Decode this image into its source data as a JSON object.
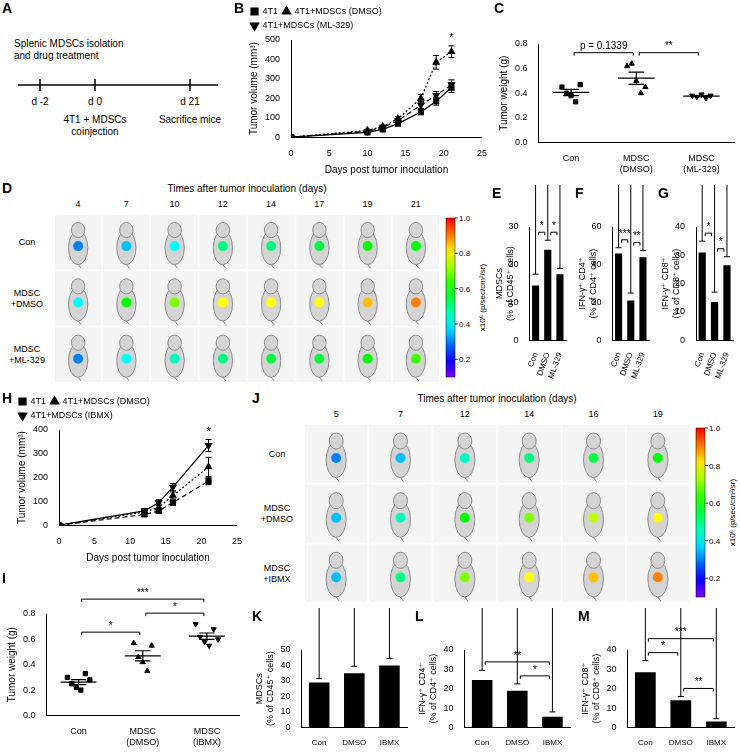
{
  "timeline": {
    "panel": "A",
    "events": [
      {
        "tick": "d -2",
        "label": "Splenic MDSCs isolation\nand drug treatment"
      },
      {
        "tick": "d 0",
        "label": "4T1 + MDSCs\ncoinjection"
      },
      {
        "tick": "d 21",
        "label": "Sacrifice mice"
      }
    ]
  },
  "imaging": [
    {
      "panel": "D",
      "title": "Times after tumor inoculation (days)",
      "days": [
        4,
        7,
        10,
        12,
        14,
        17,
        19,
        21
      ],
      "rows": [
        {
          "name": "Con",
          "signal": [
            0.3,
            0.35,
            0.4,
            0.5,
            0.5,
            0.55,
            0.6,
            0.6
          ]
        },
        {
          "name": "MDSC\n+DMSO",
          "signal": [
            0.4,
            0.6,
            0.7,
            0.8,
            0.8,
            0.8,
            0.85,
            0.9
          ]
        },
        {
          "name": "MDSC\n+ML-329",
          "signal": [
            0.3,
            0.4,
            0.45,
            0.5,
            0.55,
            0.55,
            0.6,
            0.65
          ]
        }
      ],
      "colorbar": {
        "range": [
          0.1,
          1
        ],
        "ticks": [
          0.2,
          0.4,
          0.6,
          0.8,
          {
            "value": 1,
            "label": "1.0"
          }
        ],
        "label": "x10⁶ (p/sec/cm²/sr)"
      }
    },
    {
      "panel": "J",
      "title": "Times after tumor inoculation (days)",
      "days": [
        5,
        7,
        12,
        14,
        16,
        19
      ],
      "rows": [
        {
          "name": "Con",
          "signal": [
            0.3,
            0.35,
            0.45,
            0.5,
            0.55,
            0.6
          ]
        },
        {
          "name": "MDSC\n+DMSO",
          "signal": [
            0.35,
            0.45,
            0.6,
            0.7,
            0.75,
            0.8
          ]
        },
        {
          "name": "MDSC\n+IBMX",
          "signal": [
            0.35,
            0.5,
            0.7,
            0.8,
            0.85,
            0.9
          ]
        }
      ],
      "colorbar": {
        "range": [
          0.1,
          1
        ],
        "ticks": [
          0.2,
          0.4,
          0.6,
          0.8,
          {
            "value": 1,
            "label": "1.0"
          }
        ],
        "label": "x10⁶ (p/sec/cm²/sr)"
      }
    }
  ],
  "chart_data": [
    {
      "panel": "B",
      "type": "line",
      "x_label": "Days post tumor inoculation",
      "y_label": "Tumor volume (mm³)",
      "xlim": [
        0,
        25
      ],
      "xticks": [
        0,
        5,
        10,
        15,
        20,
        25
      ],
      "ylim": [
        0,
        500
      ],
      "yticks": [
        0,
        100,
        200,
        300,
        400,
        500
      ],
      "grid": false,
      "legend": "top-left",
      "x": [
        0,
        10,
        12,
        14,
        17,
        19,
        21
      ],
      "series": [
        {
          "name": "4T1",
          "color": "#000000",
          "marker": "square",
          "line_style": "solid",
          "values": [
            0,
            25,
            40,
            70,
            130,
            185,
            255
          ],
          "errors": [
            0,
            5,
            6,
            10,
            15,
            20,
            25
          ]
        },
        {
          "name": "4T1+MDSCs (DMSO)",
          "color": "#000000",
          "marker": "triangle-up",
          "line_style": "dotted",
          "values": [
            0,
            35,
            55,
            95,
            200,
            385,
            440
          ],
          "errors": [
            0,
            6,
            8,
            12,
            20,
            35,
            30
          ]
        },
        {
          "name": "4T1+MDSCs (ML-329)",
          "color": "#000000",
          "marker": "triangle-down",
          "line_style": "dashed",
          "values": [
            0,
            30,
            50,
            85,
            165,
            215,
            270
          ],
          "errors": [
            0,
            5,
            7,
            10,
            18,
            20,
            25
          ]
        }
      ],
      "annotations": [
        {
          "text": "*",
          "series": "4T1+MDSCs (DMSO)",
          "x": 21
        }
      ]
    },
    {
      "panel": "C",
      "type": "scatter",
      "y_label": "Tumor weight (g)",
      "ylim": [
        0,
        0.8
      ],
      "yticks": [
        {
          "value": 0,
          "label": "0.0"
        },
        0.2,
        0.4,
        0.6,
        0.8
      ],
      "grid": false,
      "color": "#000000",
      "categories": [
        "Con",
        "MDSC\n(DMSO)",
        "MDSC\n(ML-329)"
      ],
      "groups": [
        {
          "marker": "square",
          "values": [
            0.45,
            0.4,
            0.38,
            0.33,
            0.47
          ],
          "mean": 0.406,
          "error": 0.025
        },
        {
          "marker": "triangle-up",
          "values": [
            0.62,
            0.64,
            0.5,
            0.4,
            0.45
          ],
          "mean": 0.522,
          "error": 0.05
        },
        {
          "marker": "triangle-down",
          "values": [
            0.38,
            0.37,
            0.39,
            0.36,
            0.38
          ],
          "mean": 0.376,
          "error": 0.005
        }
      ],
      "significance": [
        {
          "between": [
            "Con",
            "MDSC\n(DMSO)"
          ],
          "label": "p = 0.1339"
        },
        {
          "between": [
            "MDSC\n(DMSO)",
            "MDSC\n(ML-329)"
          ],
          "label": "**"
        }
      ]
    },
    {
      "panel": "E",
      "type": "bar",
      "y_label": "MDSCs\n(% of CD45⁺ cells)",
      "ylim": [
        0,
        30
      ],
      "yticks": [
        0,
        10,
        20,
        30
      ],
      "grid": false,
      "color": "#000000",
      "categories": [
        "Con",
        "DMSO",
        "ML-329"
      ],
      "values": [
        14.5,
        24,
        17.5
      ],
      "errors": [
        3,
        2.5,
        1.5
      ],
      "significance": [
        {
          "between": [
            "Con",
            "DMSO"
          ],
          "label": "*"
        },
        {
          "between": [
            "DMSO",
            "ML-329"
          ],
          "label": "*"
        }
      ]
    },
    {
      "panel": "F",
      "type": "bar",
      "y_label": "IFN-γ⁺ CD4⁺\n(% of CD4⁺ cells)",
      "ylim": [
        0,
        60
      ],
      "yticks": [
        0,
        20,
        40,
        60
      ],
      "grid": false,
      "color": "#000000",
      "categories": [
        "Con",
        "DMSO",
        "ML-329"
      ],
      "values": [
        46,
        21,
        44
      ],
      "errors": [
        3,
        4,
        3.5
      ],
      "significance": [
        {
          "between": [
            "Con",
            "DMSO"
          ],
          "label": "***"
        },
        {
          "between": [
            "DMSO",
            "ML-329"
          ],
          "label": "**"
        }
      ]
    },
    {
      "panel": "G",
      "type": "bar",
      "y_label": "IFN-γ⁺ CD8⁺\n(% of CD8⁺ cells)",
      "ylim": [
        0,
        40
      ],
      "yticks": [
        0,
        10,
        20,
        30,
        40
      ],
      "grid": false,
      "color": "#000000",
      "categories": [
        "Con",
        "DMSO",
        "ML-329"
      ],
      "values": [
        31,
        13.5,
        26.5
      ],
      "errors": [
        4,
        3.5,
        3
      ],
      "significance": [
        {
          "between": [
            "Con",
            "DMSO"
          ],
          "label": "*"
        },
        {
          "between": [
            "DMSO",
            "ML-329"
          ],
          "label": "*"
        }
      ]
    },
    {
      "panel": "H",
      "type": "line",
      "x_label": "Days post tumor inoculation",
      "y_label": "Tumor volume (mm³)",
      "xlim": [
        0,
        25
      ],
      "xticks": [
        0,
        5,
        10,
        15,
        20,
        25
      ],
      "ylim": [
        0,
        400
      ],
      "yticks": [
        0,
        100,
        200,
        300,
        400
      ],
      "grid": false,
      "legend": "top-left",
      "x": [
        0,
        12,
        14,
        16,
        21
      ],
      "series": [
        {
          "name": "4T1",
          "color": "#000000",
          "marker": "square",
          "line_style": "dashed",
          "values": [
            0,
            45,
            60,
            95,
            185
          ],
          "errors": [
            0,
            8,
            8,
            10,
            15
          ]
        },
        {
          "name": "4T1+MDSCs (DMSO)",
          "color": "#000000",
          "marker": "triangle-up",
          "line_style": "dotted",
          "values": [
            0,
            55,
            75,
            125,
            245
          ],
          "errors": [
            0,
            8,
            10,
            15,
            40
          ]
        },
        {
          "name": "4T1+MDSCs (IBMX)",
          "color": "#000000",
          "marker": "triangle-down",
          "line_style": "solid",
          "values": [
            0,
            60,
            95,
            160,
            335
          ],
          "errors": [
            0,
            10,
            12,
            15,
            25
          ]
        }
      ],
      "annotations": [
        {
          "text": "*",
          "series": "4T1+MDSCs (IBMX)",
          "x": 21
        }
      ]
    },
    {
      "panel": "I",
      "type": "scatter",
      "y_label": "Tumor weight (g)",
      "ylim": [
        0,
        0.8
      ],
      "yticks": [
        {
          "value": 0,
          "label": "0.0"
        },
        0.2,
        0.4,
        0.6,
        0.8
      ],
      "grid": false,
      "color": "#000000",
      "categories": [
        "Con",
        "MDSC\n(DMSO)",
        "MDSC\n(IBMX)"
      ],
      "groups": [
        {
          "marker": "square",
          "values": [
            0.3,
            0.25,
            0.22,
            0.2,
            0.33,
            0.28
          ],
          "mean": 0.263,
          "error": 0.02
        },
        {
          "marker": "triangle-up",
          "values": [
            0.57,
            0.46,
            0.42,
            0.35,
            0.55
          ],
          "mean": 0.47,
          "error": 0.04
        },
        {
          "marker": "triangle-down",
          "values": [
            0.72,
            0.62,
            0.58,
            0.55,
            0.68,
            0.6
          ],
          "mean": 0.625,
          "error": 0.025
        }
      ],
      "significance": [
        {
          "between": [
            "Con",
            "MDSC\n(DMSO)"
          ],
          "label": "*"
        },
        {
          "between": [
            "MDSC\n(DMSO)",
            "MDSC\n(IBMX)"
          ],
          "label": "*"
        },
        {
          "between": [
            "Con",
            "MDSC\n(IBMX)"
          ],
          "label": "***"
        }
      ]
    },
    {
      "panel": "K",
      "type": "bar",
      "y_label": "MDSCs\n(% of CD45⁺ cells)",
      "ylim": [
        0,
        50
      ],
      "yticks": [
        0,
        10,
        20,
        30,
        40,
        50
      ],
      "grid": false,
      "color": "#000000",
      "categories": [
        "Con",
        "DMSO",
        "IBMX"
      ],
      "values": [
        29,
        35,
        40
      ],
      "errors": [
        2.5,
        4.5,
        4.5
      ]
    },
    {
      "panel": "L",
      "type": "bar",
      "y_label": "IFN-γ⁺ CD4⁺\n(% of CD4⁺ cells)",
      "ylim": [
        0,
        40
      ],
      "yticks": [
        0,
        10,
        20,
        30,
        40
      ],
      "grid": false,
      "color": "#000000",
      "categories": [
        "Con",
        "DMSO",
        "IBMX"
      ],
      "values": [
        24.5,
        19,
        5.5
      ],
      "errors": [
        5,
        3.5,
        2.5
      ],
      "significance": [
        {
          "between": [
            "DMSO",
            "IBMX"
          ],
          "label": "*"
        },
        {
          "between": [
            "Con",
            "IBMX"
          ],
          "label": "**"
        }
      ]
    },
    {
      "panel": "M",
      "type": "bar",
      "y_label": "IFN-γ⁺ CD8⁺\n(% of CD8⁺ cells)",
      "ylim": [
        0,
        40
      ],
      "yticks": [
        0,
        10,
        20,
        30,
        40
      ],
      "grid": false,
      "color": "#000000",
      "categories": [
        "Con",
        "DMSO",
        "IBMX"
      ],
      "values": [
        28.5,
        14,
        3
      ],
      "errors": [
        6,
        2,
        1.5
      ],
      "significance": [
        {
          "between": [
            "Con",
            "DMSO"
          ],
          "label": "*"
        },
        {
          "between": [
            "DMSO",
            "IBMX"
          ],
          "label": "**"
        },
        {
          "between": [
            "Con",
            "IBMX"
          ],
          "label": "***"
        }
      ]
    }
  ]
}
